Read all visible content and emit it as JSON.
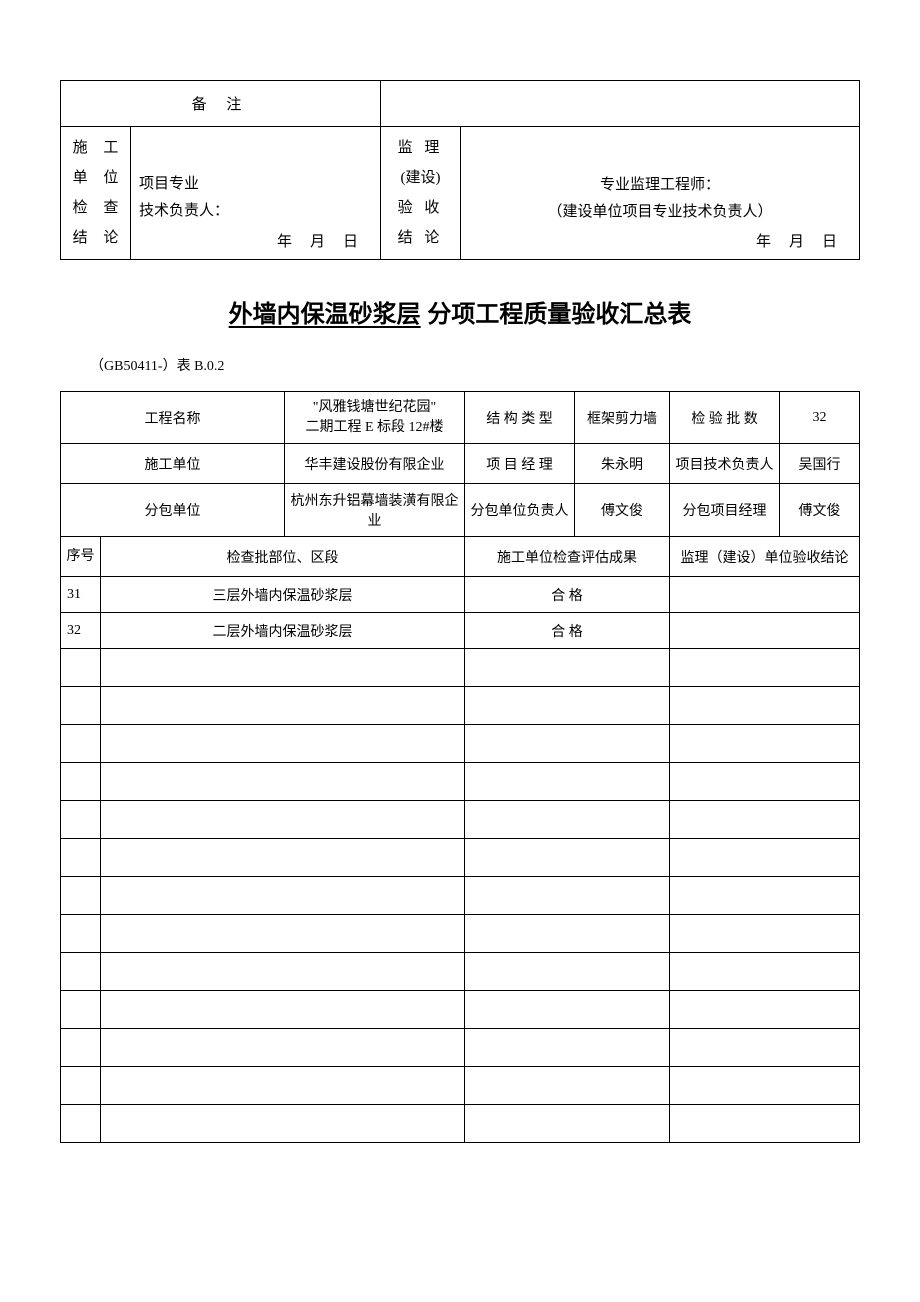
{
  "top_table": {
    "remark_label": "备 注",
    "sig_left_label_l1": "施 工",
    "sig_left_label_l2": "单 位",
    "sig_left_label_l3": "检 查",
    "sig_left_label_l4": "结 论",
    "sig_left_role_l1": "项目专业",
    "sig_left_role_l2": "技术负责人：",
    "sig_mid_label_l1": "监 理",
    "sig_mid_label_l2": "(建设)",
    "sig_mid_label_l3": "验 收",
    "sig_mid_label_l4": "结 论",
    "sig_right_role_l1": "专业监理工程师：",
    "sig_right_role_l2": "（建设单位项目专业技术负责人）",
    "date_y": "年",
    "date_m": "月",
    "date_d": "日"
  },
  "title": {
    "underlined": "外墙内保温砂浆层",
    "rest": " 分项工程质量验收汇总表"
  },
  "sub_ref": "（GB50411-）表 B.0.2",
  "header": {
    "proj_name_label": "工程名称",
    "proj_name_l1": "\"风雅钱塘世纪花园\"",
    "proj_name_l2": "二期工程 E 标段   12#楼",
    "struct_type_label": "结 构 类 型",
    "struct_type_val": "框架剪力墙",
    "batch_count_label": "检 验 批 数",
    "batch_count_val": "32",
    "constr_unit_label": "施工单位",
    "constr_unit_val": "华丰建设股份有限企业",
    "proj_mgr_label": "项 目 经 理",
    "proj_mgr_val": "朱永明",
    "tech_lead_label": "项目技术负责人",
    "tech_lead_val": "吴国行",
    "sub_unit_label": "分包单位",
    "sub_unit_val": "杭州东升铝幕墙装潢有限企业",
    "sub_lead_label": "分包单位负责人",
    "sub_lead_val": "傅文俊",
    "sub_mgr_label": "分包项目经理",
    "sub_mgr_val": "傅文俊"
  },
  "columns": {
    "seq": "序号",
    "part": "检查批部位、区段",
    "result": "施工单位检查评估成果",
    "conclusion": "监理（建设）单位验收结论"
  },
  "rows": [
    {
      "seq": "31",
      "part": "三层外墙内保温砂浆层",
      "result": "合   格",
      "conclusion": ""
    },
    {
      "seq": "32",
      "part": "二层外墙内保温砂浆层",
      "result": "合   格",
      "conclusion": ""
    }
  ],
  "empty_row_count": 13,
  "colors": {
    "border": "#000000",
    "background": "#ffffff",
    "text": "#000000"
  },
  "typography": {
    "body_font": "SimSun",
    "title_font": "SimHei",
    "body_size_pt": 11,
    "title_size_pt": 18
  }
}
